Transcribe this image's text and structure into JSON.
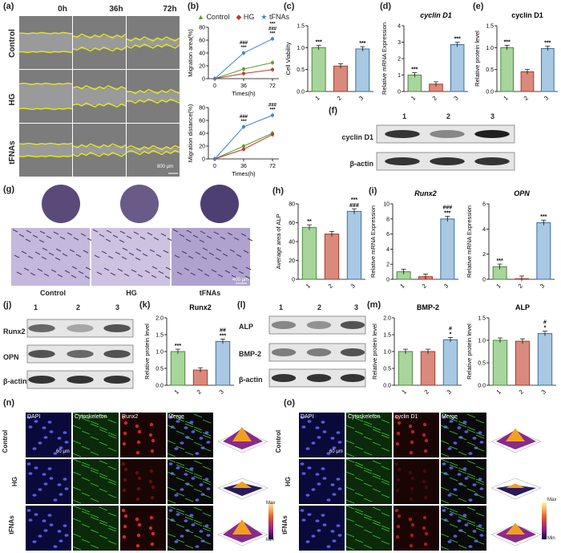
{
  "panels": {
    "a": "(a)",
    "b": "(b)",
    "c": "(c)",
    "d": "(d)",
    "e": "(e)",
    "f": "(f)",
    "g": "(g)",
    "h": "(h)",
    "i": "(i)",
    "j": "(j)",
    "k": "(k)",
    "l": "(l)",
    "m": "(m)",
    "n": "(n)",
    "o": "(o)"
  },
  "panel_a": {
    "times": [
      "0h",
      "36h",
      "72h"
    ],
    "rows": [
      "Control",
      "HG",
      "tFNAs"
    ],
    "scale": "800 μm"
  },
  "panel_b": {
    "legend": [
      "Control",
      "HG",
      "tFNAs"
    ],
    "colors": [
      "#5aa02c",
      "#c0392b",
      "#3d85c6"
    ]
  },
  "chart_data": [
    {
      "id": "b1",
      "type": "line",
      "x": [
        0,
        36,
        72
      ],
      "series": [
        {
          "name": "Control",
          "values": [
            0,
            15,
            25
          ]
        },
        {
          "name": "HG",
          "values": [
            0,
            8,
            14
          ]
        },
        {
          "name": "tFNAs",
          "values": [
            0,
            40,
            62
          ]
        }
      ],
      "xlabel": "Times(h)",
      "ylabel": "Migration area(%)",
      "ylim": [
        0,
        80
      ],
      "yticks": [
        0,
        20,
        40,
        60,
        80
      ],
      "annotations": [
        {
          "x": 36,
          "text": "***"
        },
        {
          "x": 36,
          "text": "###"
        },
        {
          "x": 72,
          "text": "***"
        },
        {
          "x": 72,
          "text": "###"
        },
        {
          "x": 72,
          "text": "***"
        }
      ]
    },
    {
      "id": "b2",
      "type": "line",
      "x": [
        0,
        36,
        72
      ],
      "series": [
        {
          "name": "Control",
          "values": [
            0,
            20,
            40
          ]
        },
        {
          "name": "HG",
          "values": [
            0,
            15,
            38
          ]
        },
        {
          "name": "tFNAs",
          "values": [
            0,
            50,
            68
          ]
        }
      ],
      "xlabel": "Times(h)",
      "ylabel": "Migration distance(%)",
      "ylim": [
        0,
        80
      ],
      "yticks": [
        0,
        20,
        40,
        60,
        80
      ],
      "annotations": [
        {
          "x": 36,
          "text": "***"
        },
        {
          "x": 36,
          "text": "###"
        },
        {
          "x": 72,
          "text": "***"
        },
        {
          "x": 72,
          "text": "###"
        }
      ]
    },
    {
      "id": "c",
      "type": "bar",
      "categories": [
        "1",
        "2",
        "3"
      ],
      "values": [
        1.0,
        0.58,
        0.97
      ],
      "ylabel": "Cell Viability",
      "ylim": [
        0,
        1.5
      ],
      "yticks": [
        "0.0",
        "0.5",
        "1.0",
        "1.5"
      ],
      "marks": [
        "***",
        "",
        "***"
      ]
    },
    {
      "id": "d",
      "type": "bar",
      "categories": [
        "1",
        "2",
        "3"
      ],
      "values": [
        1.0,
        0.45,
        2.85
      ],
      "ylabel": "Relative mRNA Expression",
      "title": "cyclin D1",
      "ylim": [
        0,
        4
      ],
      "yticks": [
        "0",
        "1",
        "2",
        "3",
        "4"
      ],
      "marks": [
        "***",
        "",
        "***"
      ]
    },
    {
      "id": "e",
      "type": "bar",
      "categories": [
        "1",
        "2",
        "3"
      ],
      "values": [
        1.0,
        0.45,
        0.98
      ],
      "ylabel": "Relative protein level",
      "title": "cyclin D1",
      "ylim": [
        0,
        1.5
      ],
      "yticks": [
        "0.0",
        "0.5",
        "1.0",
        "1.5"
      ],
      "marks": [
        "***",
        "",
        "***"
      ]
    },
    {
      "id": "h",
      "type": "bar",
      "categories": [
        "1",
        "2",
        "3"
      ],
      "values": [
        55,
        48,
        72
      ],
      "ylabel": "Average area of ALP",
      "ylim": [
        0,
        80
      ],
      "yticks": [
        "0",
        "20",
        "40",
        "60",
        "80"
      ],
      "marks": [
        "**",
        "",
        "***\n###"
      ]
    },
    {
      "id": "i1",
      "type": "bar",
      "categories": [
        "1",
        "2",
        "3"
      ],
      "values": [
        1.0,
        0.35,
        8.0
      ],
      "ylabel": "Relative mRNA Expression",
      "title": "Runx2",
      "ylim": [
        0,
        10
      ],
      "yticks": [
        "0",
        "2",
        "4",
        "6",
        "8",
        "10"
      ],
      "marks": [
        "",
        "",
        "###\n***"
      ]
    },
    {
      "id": "i2",
      "type": "bar",
      "categories": [
        "1",
        "2",
        "3"
      ],
      "values": [
        1.0,
        0.05,
        4.5
      ],
      "ylabel": "Relative mRNA Expression",
      "title": "OPN",
      "ylim": [
        0,
        6
      ],
      "yticks": [
        "0",
        "2",
        "4",
        "6"
      ],
      "marks": [
        "***",
        "",
        "***"
      ]
    },
    {
      "id": "k",
      "type": "bar",
      "categories": [
        "1",
        "2",
        "3"
      ],
      "values": [
        1.0,
        0.45,
        1.3
      ],
      "ylabel": "Relative protein level",
      "title": "Runx2",
      "ylim": [
        0,
        2.0
      ],
      "yticks": [
        "0.0",
        "0.5",
        "1.0",
        "1.5",
        "2.0"
      ],
      "marks": [
        "***",
        "",
        "##\n***"
      ]
    },
    {
      "id": "m1",
      "type": "bar",
      "categories": [
        "1",
        "2",
        "3"
      ],
      "values": [
        1.0,
        1.0,
        1.35
      ],
      "ylabel": "Relative protein level",
      "title": "BMP-2",
      "ylim": [
        0,
        2.0
      ],
      "yticks": [
        "0.0",
        "0.5",
        "1.0",
        "1.5",
        "2.0"
      ],
      "marks": [
        "",
        "",
        "#\n*"
      ]
    },
    {
      "id": "m2",
      "type": "bar",
      "categories": [
        "1",
        "2",
        "3"
      ],
      "values": [
        1.0,
        0.98,
        1.15
      ],
      "ylabel": "Relative protein level",
      "title": "ALP",
      "ylim": [
        0,
        1.5
      ],
      "yticks": [
        "0.0",
        "0.5",
        "1.0",
        "1.5"
      ],
      "marks": [
        "",
        "",
        "#\n*"
      ]
    }
  ],
  "bar_colors": [
    "#a8d59b",
    "#d98a7c",
    "#a9c8e4"
  ],
  "bar_edges": [
    "#4a8a3a",
    "#a03a2a",
    "#3a6f9a"
  ],
  "panel_f": {
    "lanes": [
      "1",
      "2",
      "3"
    ],
    "labels": [
      "cyclin D1",
      "β-actin"
    ]
  },
  "panel_g": {
    "labels": [
      "Control",
      "HG",
      "tFNAs"
    ],
    "scale": "400 μm"
  },
  "panel_j": {
    "lanes": [
      "1",
      "2",
      "3"
    ],
    "labels": [
      "Runx2",
      "OPN",
      "β-actin"
    ]
  },
  "panel_l": {
    "lanes": [
      "1",
      "2",
      "3"
    ],
    "labels": [
      "ALP",
      "BMP-2",
      "β-actin"
    ]
  },
  "panel_n": {
    "columns": [
      "DAPI",
      "Cytoskeleton",
      "Runx2",
      "Merge"
    ],
    "rows": [
      "Control",
      "HG",
      "tFNAs"
    ],
    "scale": "60 μm",
    "colorbar": [
      "Max",
      "Min"
    ]
  },
  "panel_o": {
    "columns": [
      "DAPI",
      "Cytoskeleton",
      "cyclin D1",
      "Merge"
    ],
    "rows": [
      "Control",
      "HG",
      "tFNAs"
    ],
    "scale": "60 μm",
    "colorbar": [
      "Max",
      "Min"
    ]
  }
}
